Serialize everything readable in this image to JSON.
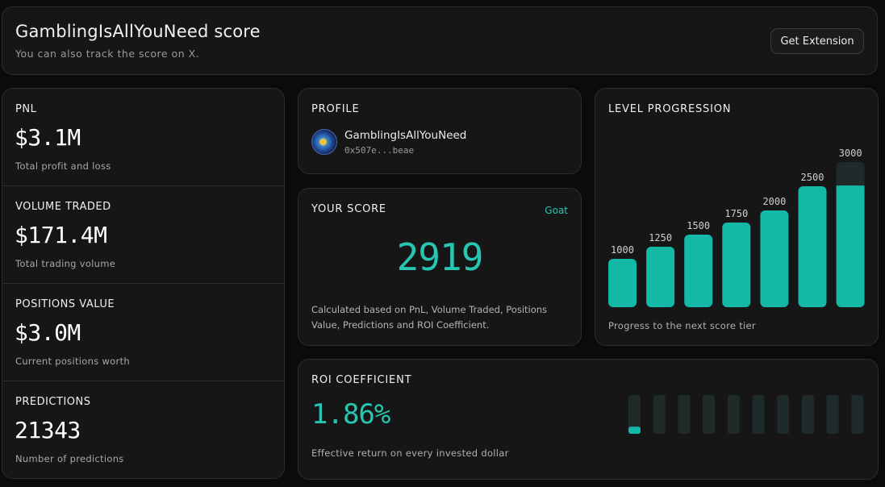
{
  "header": {
    "title": "GamblingIsAllYouNeed score",
    "subtitle": "You can also track the score on X.",
    "extension_button": "Get Extension"
  },
  "stats": [
    {
      "label": "PNL",
      "value": "$3.1M",
      "description": "Total profit and loss"
    },
    {
      "label": "VOLUME TRADED",
      "value": "$171.4M",
      "description": "Total trading volume"
    },
    {
      "label": "POSITIONS VALUE",
      "value": "$3.0M",
      "description": "Current positions worth"
    },
    {
      "label": "PREDICTIONS",
      "value": "21343",
      "description": "Number of predictions"
    }
  ],
  "profile": {
    "label": "PROFILE",
    "name": "GamblingIsAllYouNeed",
    "address": "0x507e...beae"
  },
  "score": {
    "label": "YOUR SCORE",
    "tier": "Goat",
    "value": "2919",
    "note": "Calculated based on PnL, Volume Traded, Positions Value, Predictions and ROI Coefficient."
  },
  "level": {
    "label": "LEVEL PROGRESSION",
    "footer": "Progress to the next score tier",
    "tiers": [
      "1000",
      "1250",
      "1500",
      "1750",
      "2000",
      "2500",
      "3000"
    ],
    "current_score": 2919
  },
  "roi": {
    "label": "ROI COEFFICIENT",
    "value": "1.86%",
    "description": "Effective return on every invested dollar",
    "meter_segments": 10,
    "meter_fill": 0.186
  },
  "colors": {
    "accent": "#14b8a6",
    "accent_text": "#26c6b2",
    "track": "#1e2b2a"
  }
}
